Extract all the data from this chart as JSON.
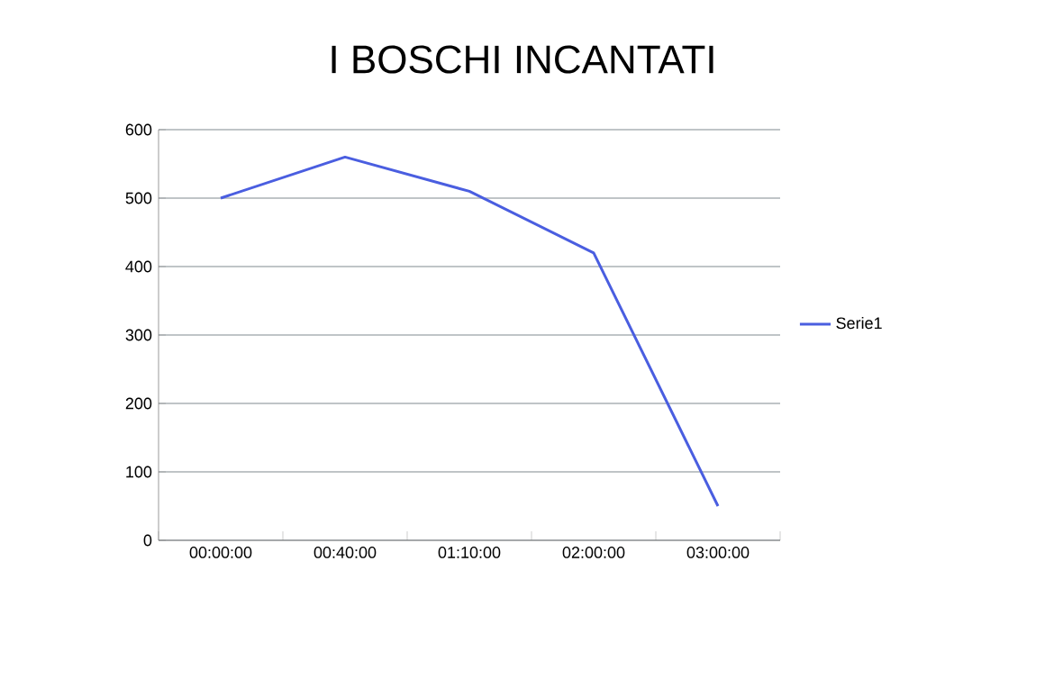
{
  "chart_data": {
    "type": "line",
    "title": "I BOSCHI INCANTATI",
    "categories": [
      "00:00:00",
      "00:40:00",
      "01:10:00",
      "02:00:00",
      "03:00:00"
    ],
    "series": [
      {
        "name": "Serie1",
        "color": "#4a5ee0",
        "values": [
          500,
          560,
          510,
          420,
          50
        ]
      }
    ],
    "ylim": [
      0,
      600
    ],
    "yticks": [
      0,
      100,
      200,
      300,
      400,
      500,
      600
    ],
    "grid": "y",
    "legend": "right",
    "marker": "none",
    "line_style": "solid"
  }
}
